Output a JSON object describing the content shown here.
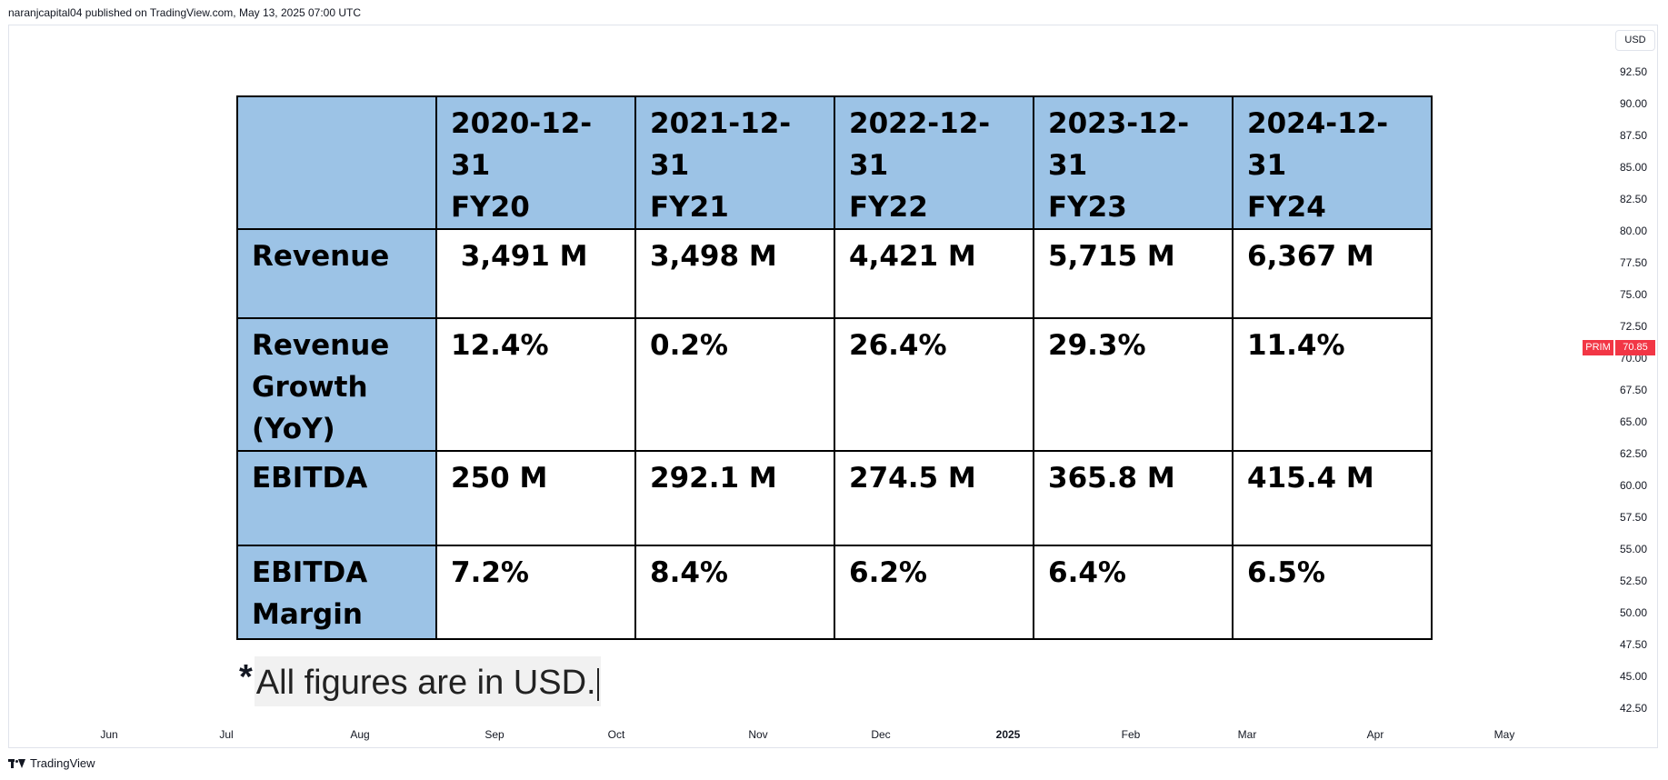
{
  "header": {
    "published_line": "naranjcapital04 published on TradingView.com, May 13, 2025 07:00 UTC"
  },
  "price_axis": {
    "currency": "USD",
    "ticks": [
      "92.50",
      "90.00",
      "87.50",
      "85.00",
      "82.50",
      "80.00",
      "77.50",
      "75.00",
      "72.50",
      "70.00",
      "67.50",
      "65.00",
      "62.50",
      "60.00",
      "57.50",
      "55.00",
      "52.50",
      "50.00",
      "47.50",
      "45.00",
      "42.50"
    ],
    "symbol_tag": "PRIM",
    "last_price": "70.85",
    "tag_color": "#f23645"
  },
  "time_axis": {
    "ticks": [
      "Jun",
      "Jul",
      "Aug",
      "Sep",
      "Oct",
      "Nov",
      "Dec",
      "2025",
      "Feb",
      "Mar",
      "Apr",
      "May"
    ]
  },
  "table": {
    "header_color": "#9cc3e6",
    "columns": [
      {
        "date": "2020-12-31",
        "fy": "FY20"
      },
      {
        "date": "2021-12-31",
        "fy": "FY21"
      },
      {
        "date": "2022-12-31",
        "fy": "FY22"
      },
      {
        "date": "2023-12-31",
        "fy": "FY23"
      },
      {
        "date": "2024-12-31",
        "fy": "FY24"
      }
    ],
    "rows": [
      {
        "label": [
          "Revenue"
        ],
        "values": [
          " 3,491 M",
          "3,498 M",
          "4,421 M",
          "5,715 M",
          "6,367 M"
        ]
      },
      {
        "label": [
          "Revenue",
          "Growth",
          "(YoY)"
        ],
        "values": [
          "12.4%",
          "0.2%",
          "26.4%",
          "29.3%",
          "11.4%"
        ]
      },
      {
        "label": [
          "EBITDA"
        ],
        "values": [
          "250 M",
          "292.1 M",
          "274.5 M",
          "365.8 M",
          "415.4 M"
        ]
      },
      {
        "label": [
          "EBITDA",
          "Margin"
        ],
        "values": [
          "7.2%",
          "8.4%",
          "6.2%",
          "6.4%",
          "6.5%"
        ]
      }
    ]
  },
  "footnote": {
    "star": "*",
    "text": "All figures are in USD."
  },
  "footer": {
    "brand": "TradingView",
    "icon": "tradingview-logo-icon"
  }
}
